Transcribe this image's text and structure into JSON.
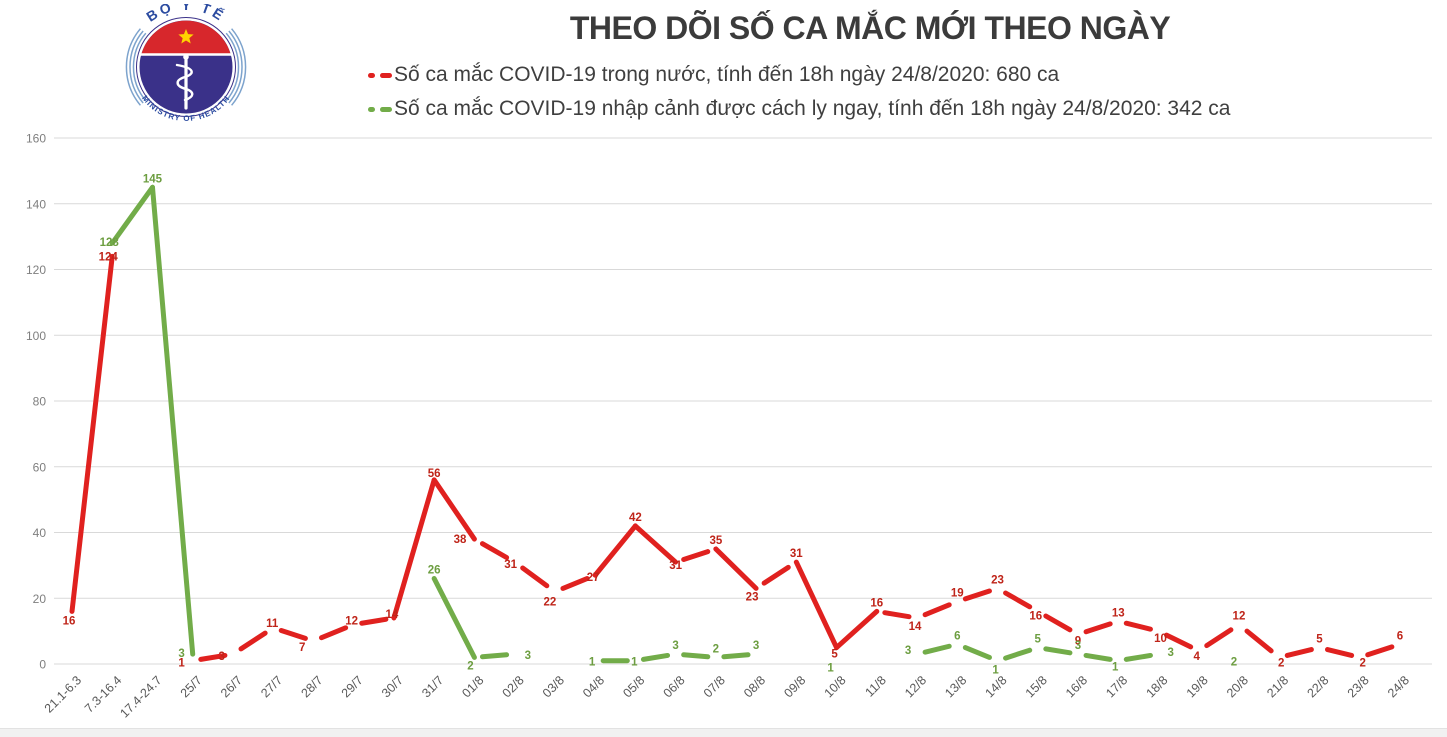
{
  "logo": {
    "top_text": "BỘ Y TẾ",
    "bottom_text": "MINISTRY OF HEALTH"
  },
  "title": "THEO DÕI SỐ CA MẮC MỚI THEO NGÀY",
  "legend": {
    "items": [
      {
        "label": "Số ca mắc COVID-19 trong nước, tính đến 18h ngày 24/8/2020: 680 ca",
        "color": "#e0211f"
      },
      {
        "label": "Số ca mắc COVID-19 nhập cảnh được cách ly ngay, tính đến 18h ngày 24/8/2020: 342 ca",
        "color": "#72ac49"
      }
    ]
  },
  "chart_data": {
    "type": "line",
    "title": "THEO DÕI SỐ CA MẮC MỚI THEO NGÀY",
    "categories": [
      "21.1-6.3",
      "7.3-16.4",
      "17.4-24.7",
      "25/7",
      "26/7",
      "27/7",
      "28/7",
      "29/7",
      "30/7",
      "31/7",
      "01/8",
      "02/8",
      "03/8",
      "04/8",
      "05/8",
      "06/8",
      "07/8",
      "08/8",
      "09/8",
      "10/8",
      "11/8",
      "12/8",
      "13/8",
      "14/8",
      "15/8",
      "16/8",
      "17/8",
      "18/8",
      "19/8",
      "20/8",
      "21/8",
      "22/8",
      "23/8",
      "24/8"
    ],
    "series": [
      {
        "name": "Số ca mắc COVID-19 trong nước",
        "total_label": "680 ca",
        "color": "#e0211f",
        "label_color": "#bf2419",
        "values": [
          16,
          124,
          null,
          1,
          3,
          11,
          7,
          12,
          14,
          56,
          38,
          31,
          22,
          27,
          42,
          31,
          35,
          23,
          31,
          5,
          16,
          14,
          19,
          23,
          16,
          9,
          13,
          10,
          4,
          12,
          2,
          5,
          2,
          6
        ]
      },
      {
        "name": "Số ca mắc COVID-19 nhập cảnh được cách ly ngay",
        "total_label": "342 ca",
        "color": "#72ac49",
        "label_color": "#6d9e41",
        "values": [
          null,
          128,
          145,
          3,
          null,
          null,
          null,
          null,
          null,
          26,
          2,
          3,
          null,
          1,
          1,
          3,
          2,
          3,
          null,
          1,
          null,
          3,
          6,
          1,
          5,
          3,
          1,
          3,
          null,
          2,
          null,
          null,
          null,
          null
        ]
      }
    ],
    "ylim": [
      0,
      160
    ],
    "ytick_step": 20,
    "grid": true,
    "legend_position": "top",
    "style": {
      "grid_color": "#d9d9d9",
      "axis_text_color": "#7f7f7f",
      "xaxis_text_color": "#595959"
    }
  }
}
